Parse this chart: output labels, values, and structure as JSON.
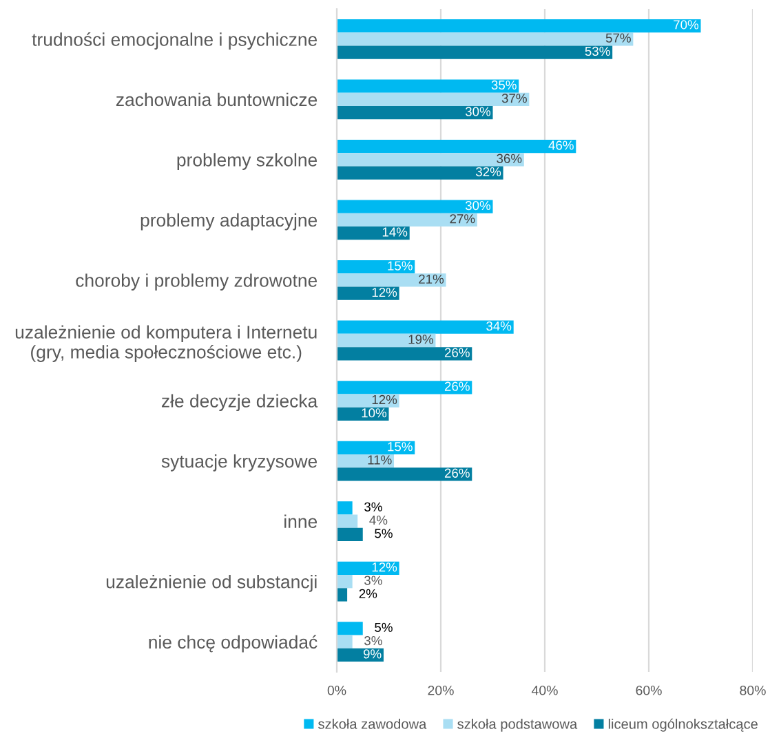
{
  "chart_data": {
    "type": "bar",
    "orientation": "horizontal",
    "categories": [
      "trudności emocjonalne i psychiczne",
      "zachowania buntownicze",
      "problemy szkolne",
      "problemy adaptacyjne",
      "choroby i problemy zdrowotne",
      "uzależnienie od komputera i Internetu\n(gry, media społecznościowe etc.)",
      "złe decyzje dziecka",
      "sytuacje kryzysowe",
      "inne",
      "uzależnienie od substancji",
      "nie chcę odpowiadać"
    ],
    "series": [
      {
        "name": "szkoła zawodowa",
        "color": "#00b9f1",
        "values": [
          70,
          35,
          46,
          30,
          15,
          34,
          26,
          15,
          3,
          12,
          5
        ],
        "value_labels": [
          "70%",
          "35%",
          "46%",
          "30%",
          "15%",
          "34%",
          "26%",
          "15%",
          "3%",
          "12%",
          "5%"
        ]
      },
      {
        "name": "szkoła podstawowa",
        "color": "#a9def3",
        "values": [
          57,
          37,
          36,
          27,
          21,
          19,
          12,
          11,
          4,
          3,
          3
        ],
        "value_labels": [
          "57%",
          "37%",
          "36%",
          "27%",
          "21%",
          "19%",
          "12%",
          "11%",
          "4%",
          "3%",
          "3%"
        ]
      },
      {
        "name": "liceum ogólnokształcące",
        "color": "#037fa1",
        "values": [
          53,
          30,
          32,
          14,
          12,
          26,
          10,
          26,
          5,
          2,
          9
        ],
        "value_labels": [
          "53%",
          "30%",
          "32%",
          "14%",
          "12%",
          "26%",
          "10%",
          "26%",
          "5%",
          "2%",
          "9%"
        ]
      }
    ],
    "xlim": [
      0,
      80
    ],
    "xticks": [
      {
        "value": 0,
        "label": "0%"
      },
      {
        "value": 20,
        "label": "20%"
      },
      {
        "value": 40,
        "label": "40%"
      },
      {
        "value": 60,
        "label": "60%"
      },
      {
        "value": 80,
        "label": "80%"
      }
    ],
    "grid": "x",
    "legend": "bottom"
  }
}
